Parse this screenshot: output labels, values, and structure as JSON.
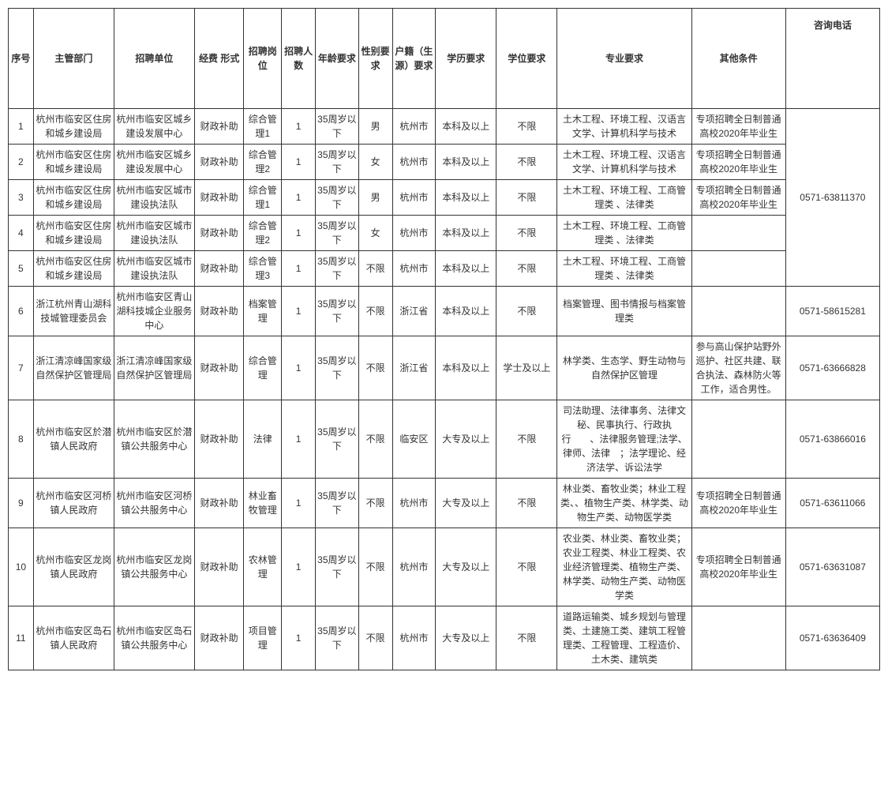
{
  "headers": {
    "seq": "序号",
    "dept": "主管部门",
    "unit": "招聘单位",
    "fund": "经费 形式",
    "pos": "招聘岗位",
    "num": "招聘人数",
    "age": "年龄要求",
    "gender": "性别要求",
    "loc": "户籍（生源）要求",
    "edu": "学历要求",
    "degree": "学位要求",
    "major": "专业要求",
    "other": "其他条件",
    "phone": "咨询电话"
  },
  "rows": [
    {
      "seq": "1",
      "dept": "杭州市临安区住房和城乡建设局",
      "unit": "杭州市临安区城乡建设发展中心",
      "fund": "财政补助",
      "pos": "综合管理1",
      "num": "1",
      "age": "35周岁以下",
      "gender": "男",
      "loc": "杭州市",
      "edu": "本科及以上",
      "degree": "不限",
      "major": "土木工程、环境工程、汉语言文学、计算机科学与技术",
      "other": "专项招聘全日制普通高校2020年毕业生"
    },
    {
      "seq": "2",
      "dept": "杭州市临安区住房和城乡建设局",
      "unit": "杭州市临安区城乡建设发展中心",
      "fund": "财政补助",
      "pos": "综合管理2",
      "num": "1",
      "age": "35周岁以下",
      "gender": "女",
      "loc": "杭州市",
      "edu": "本科及以上",
      "degree": "不限",
      "major": "土木工程、环境工程、汉语言文学、计算机科学与技术",
      "other": "专项招聘全日制普通高校2020年毕业生"
    },
    {
      "seq": "3",
      "dept": "杭州市临安区住房和城乡建设局",
      "unit": "杭州市临安区城市建设执法队",
      "fund": "财政补助",
      "pos": "综合管理1",
      "num": "1",
      "age": "35周岁以下",
      "gender": "男",
      "loc": "杭州市",
      "edu": "本科及以上",
      "degree": "不限",
      "major": "土木工程、环境工程、工商管理类 、法律类",
      "other": "专项招聘全日制普通高校2020年毕业生"
    },
    {
      "seq": "4",
      "dept": "杭州市临安区住房和城乡建设局",
      "unit": "杭州市临安区城市建设执法队",
      "fund": "财政补助",
      "pos": "综合管理2",
      "num": "1",
      "age": "35周岁以下",
      "gender": "女",
      "loc": "杭州市",
      "edu": "本科及以上",
      "degree": "不限",
      "major": "土木工程、环境工程、工商管理类 、法律类",
      "other": ""
    },
    {
      "seq": "5",
      "dept": "杭州市临安区住房和城乡建设局",
      "unit": "杭州市临安区城市建设执法队",
      "fund": "财政补助",
      "pos": "综合管理3",
      "num": "1",
      "age": "35周岁以下",
      "gender": "不限",
      "loc": "杭州市",
      "edu": "本科及以上",
      "degree": "不限",
      "major": "土木工程、环境工程、工商管理类 、法律类",
      "other": ""
    },
    {
      "seq": "6",
      "dept": "浙江杭州青山湖科技城管理委员会",
      "unit": "杭州市临安区青山湖科技城企业服务中心",
      "fund": "财政补助",
      "pos": "档案管理",
      "num": "1",
      "age": "35周岁以下",
      "gender": "不限",
      "loc": "浙江省",
      "edu": "本科及以上",
      "degree": "不限",
      "major": "档案管理、图书情报与档案管理类",
      "other": "",
      "phone": "0571-58615281"
    },
    {
      "seq": "7",
      "dept": "浙江清凉峰国家级自然保护区管理局",
      "unit": "浙江清凉峰国家级自然保护区管理局",
      "fund": "财政补助",
      "pos": "综合管理",
      "num": "1",
      "age": "35周岁以下",
      "gender": "不限",
      "loc": "浙江省",
      "edu": "本科及以上",
      "degree": "学士及以上",
      "major": "林学类、生态学、野生动物与自然保护区管理",
      "other": "参与高山保护站野外巡护、社区共建、联合执法、森林防火等工作，适合男性。",
      "phone": "0571-63666828"
    },
    {
      "seq": "8",
      "dept": "杭州市临安区於潜镇人民政府",
      "unit": "杭州市临安区於潜镇公共服务中心",
      "fund": "财政补助",
      "pos": "法律",
      "num": "1",
      "age": "35周岁以下",
      "gender": "不限",
      "loc": "临安区",
      "edu": "大专及以上",
      "degree": "不限",
      "major": "司法助理、法律事务、法律文秘、民事执行、行政执行　　、法律服务管理;法学、律师、法律　；法学理论、经济法学、诉讼法学",
      "other": "",
      "phone": "0571-63866016"
    },
    {
      "seq": "9",
      "dept": "杭州市临安区河桥镇人民政府",
      "unit": "杭州市临安区河桥镇公共服务中心",
      "fund": "财政补助",
      "pos": "林业畜牧管理",
      "num": "1",
      "age": "35周岁以下",
      "gender": "不限",
      "loc": "杭州市",
      "edu": "大专及以上",
      "degree": "不限",
      "major": "林业类、畜牧业类；林业工程类、、植物生产类、林学类、动物生产类、动物医学类",
      "other": "专项招聘全日制普通高校2020年毕业生",
      "phone": "0571-63611066"
    },
    {
      "seq": "10",
      "dept": "杭州市临安区龙岗镇人民政府",
      "unit": "杭州市临安区龙岗镇公共服务中心",
      "fund": "财政补助",
      "pos": "农林管理",
      "num": "1",
      "age": "35周岁以下",
      "gender": "不限",
      "loc": "杭州市",
      "edu": "大专及以上",
      "degree": "不限",
      "major": "农业类、林业类、畜牧业类；农业工程类、林业工程类、农业经济管理类、植物生产类、林学类、动物生产类、动物医学类",
      "other": "专项招聘全日制普通高校2020年毕业生",
      "phone": "0571-63631087"
    },
    {
      "seq": "11",
      "dept": "杭州市临安区岛石镇人民政府",
      "unit": "杭州市临安区岛石镇公共服务中心",
      "fund": "财政补助",
      "pos": "项目管理",
      "num": "1",
      "age": "35周岁以下",
      "gender": "不限",
      "loc": "杭州市",
      "edu": "大专及以上",
      "degree": "不限",
      "major": "道路运输类、城乡规划与管理类、土建施工类、建筑工程管理类、工程管理、工程造价、土木类、建筑类",
      "other": "",
      "phone": "0571-63636409"
    }
  ],
  "phoneGroup1": "0571-63811370"
}
